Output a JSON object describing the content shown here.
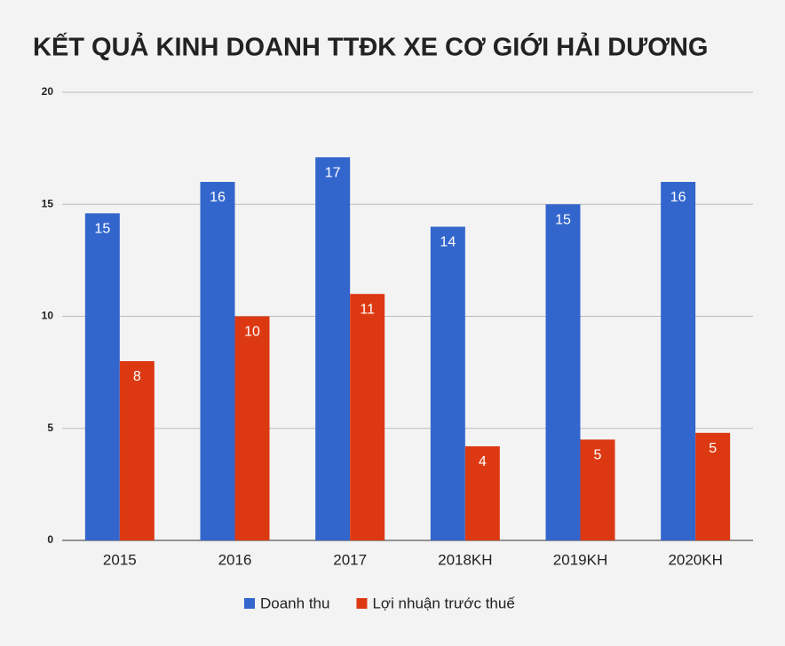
{
  "chart_data": {
    "type": "bar",
    "title": "KẾT QUẢ KINH DOANH TTĐK XE CƠ GIỚI HẢI DƯƠNG",
    "categories": [
      "2015",
      "2016",
      "2017",
      "2018KH",
      "2019KH",
      "2020KH"
    ],
    "series": [
      {
        "name": "Doanh thu",
        "color": "#3366cc",
        "values": [
          14.6,
          16,
          17.1,
          14,
          15,
          16
        ],
        "value_labels": [
          "15",
          "16",
          "17",
          "14",
          "15",
          "16"
        ]
      },
      {
        "name": "Lợi nhuận trước thuế",
        "color": "#dc3912",
        "values": [
          8,
          10,
          11,
          4.2,
          4.5,
          4.8
        ],
        "value_labels": [
          "8",
          "10",
          "11",
          "4",
          "5",
          "5"
        ]
      }
    ],
    "ylim": [
      0,
      20
    ],
    "yticks": [
      0,
      5,
      10,
      15,
      20
    ],
    "grid": true,
    "legend": "bottom"
  }
}
